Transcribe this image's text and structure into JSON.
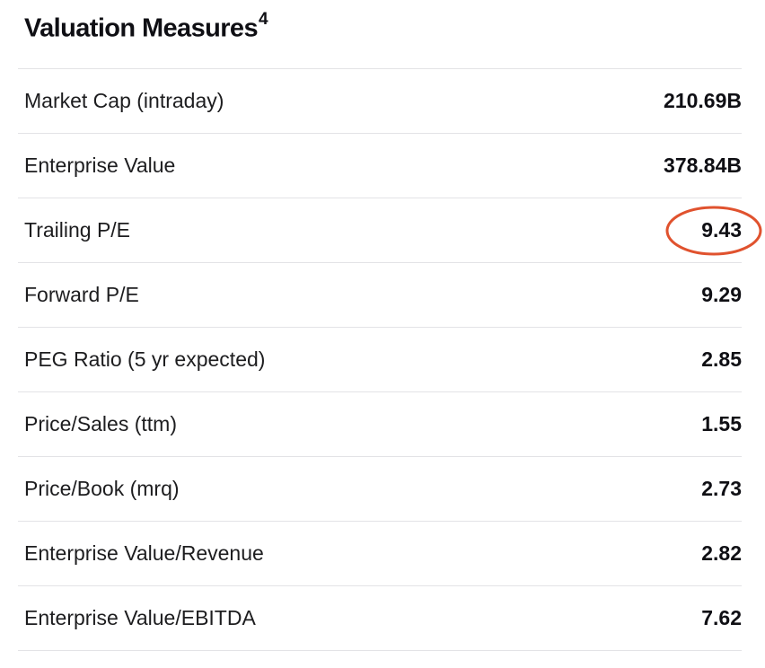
{
  "header": {
    "title": "Valuation Measures",
    "footnote": "4"
  },
  "rows": [
    {
      "label": "Market Cap (intraday)",
      "value": "210.69B"
    },
    {
      "label": "Enterprise Value",
      "value": "378.84B"
    },
    {
      "label": "Trailing P/E",
      "value": "9.43"
    },
    {
      "label": "Forward P/E",
      "value": "9.29"
    },
    {
      "label": "PEG Ratio (5 yr expected)",
      "value": "2.85"
    },
    {
      "label": "Price/Sales (ttm)",
      "value": "1.55"
    },
    {
      "label": "Price/Book (mrq)",
      "value": "2.73"
    },
    {
      "label": "Enterprise Value/Revenue",
      "value": "2.82"
    },
    {
      "label": "Enterprise Value/EBITDA",
      "value": "7.62"
    }
  ],
  "annotation": {
    "highlighted_value": "9.43",
    "color": "#e0522e"
  },
  "colors": {
    "divider": "#e3e3e6",
    "text": "#1d1d1f"
  }
}
